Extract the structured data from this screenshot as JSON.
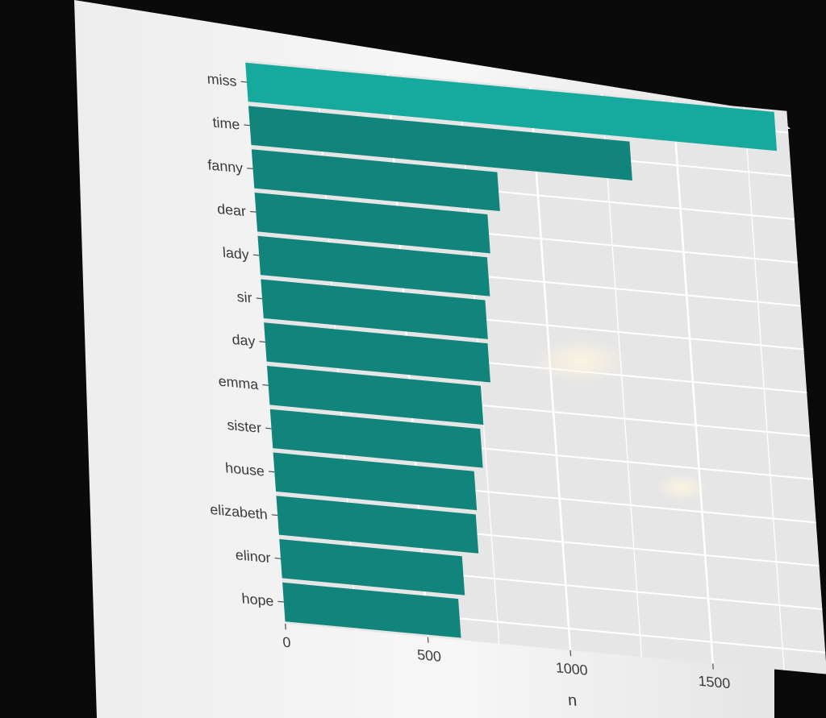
{
  "chart_data": {
    "type": "bar",
    "orientation": "horizontal",
    "categories": [
      "miss",
      "time",
      "fanny",
      "dear",
      "lady",
      "sir",
      "day",
      "emma",
      "sister",
      "house",
      "elizabeth",
      "elinor",
      "hope"
    ],
    "values": [
      1855,
      1337,
      862,
      817,
      805,
      787,
      785,
      750,
      737,
      705,
      700,
      641,
      617
    ],
    "xlabel": "n",
    "ylabel": "",
    "xticks": [
      0,
      500,
      1000,
      1500
    ],
    "xlim": [
      0,
      1900
    ],
    "grid": true,
    "colors": {
      "bar": "#11857c",
      "bar_top": "#16aa9e",
      "panel": "#e6e6e6",
      "screen": "#f4f4f4",
      "gridline": "#ffffff"
    }
  }
}
